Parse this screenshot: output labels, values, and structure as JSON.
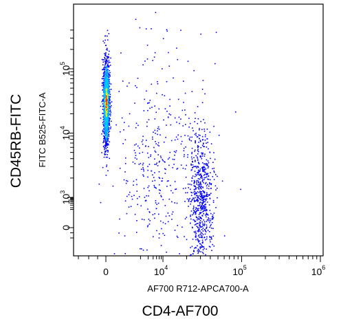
{
  "chart_data": {
    "type": "scatter",
    "style": "density-dot-plot",
    "title": "",
    "xlabel": "AF700 R712-APCA700-A",
    "ylabel": "FITC B525-FITC-A",
    "outer_xlabel": "CD4-AF700",
    "outer_ylabel": "CD45RB-FITC",
    "x_scale": "biexponential",
    "y_scale": "biexponential",
    "grid": false,
    "colors": {
      "low": "#0000ff",
      "mid": "#00c8ff",
      "high": "#ffee00",
      "peak": "#ff3300"
    },
    "x_ticks": [
      {
        "base": "0",
        "exp": ""
      },
      {
        "base": "10",
        "exp": "4"
      },
      {
        "base": "10",
        "exp": "5"
      },
      {
        "base": "10",
        "exp": "6"
      }
    ],
    "y_ticks": [
      {
        "base": "0",
        "exp": ""
      },
      {
        "base": "10",
        "exp": "3"
      },
      {
        "base": "10",
        "exp": "4"
      },
      {
        "base": "10",
        "exp": "5"
      }
    ],
    "populations": [
      {
        "name": "",
        "x_center": 0,
        "y_center": 30000,
        "x_spread": 0.06,
        "y_spread": 0.35,
        "count": 1400,
        "dense": true
      },
      {
        "name": "",
        "x_center": 30000,
        "y_center": 600,
        "x_spread": 0.22,
        "y_spread": 0.55,
        "count": 700,
        "dense": false
      },
      {
        "name": "",
        "x_center": 8000,
        "y_center": 3000,
        "x_spread": 0.9,
        "y_spread": 0.9,
        "count": 420,
        "dense": false
      }
    ]
  }
}
